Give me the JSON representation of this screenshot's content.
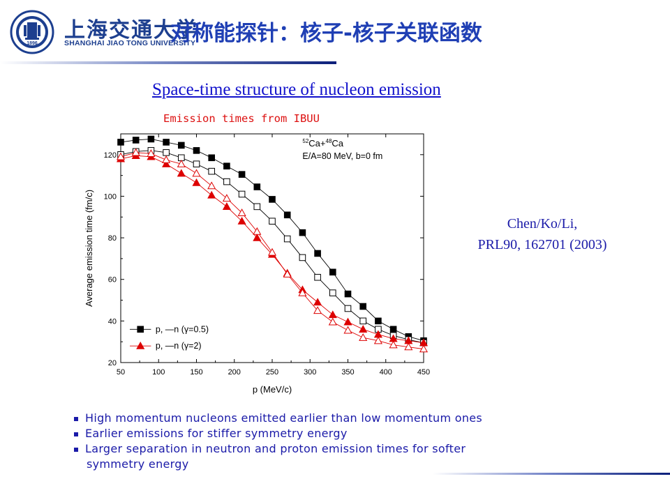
{
  "header": {
    "school_cn": "上海交通大学",
    "school_en": "SHANGHAI JIAO TONG UNIVERSITY",
    "logo_year": "1896",
    "slide_title": "对称能探针：核子-核子关联函数"
  },
  "subtitle": "Space-time structure of nucleon emission",
  "caption": "Emission times from IBUU",
  "citation": {
    "line1": "Chen/Ko/Li,",
    "line2": "PRL90, 162701 (2003)"
  },
  "bullets": [
    "High momentum nucleons emitted earlier than low momentum ones",
    "Earlier emissions for stiffer symmetry energy",
    "Larger separation in neutron and proton emission times for softer",
    "symmetry energy"
  ],
  "colors": {
    "title_blue": "#1f3fb4",
    "subtitle_blue": "#1111cc",
    "caption_red": "#dd1111",
    "text_navy": "#1a1aa8",
    "series_black": "#000000",
    "series_red": "#dd0000"
  },
  "chart_data": {
    "type": "line",
    "xlabel": "p (MeV/c)",
    "ylabel": "Average emission time (fm/c)",
    "xlim": [
      50,
      450
    ],
    "ylim": [
      20,
      130
    ],
    "xticks": [
      50,
      100,
      150,
      200,
      250,
      300,
      350,
      400,
      450
    ],
    "yticks": [
      20,
      40,
      60,
      80,
      100,
      120
    ],
    "annotation_line1": "Ca+Ca",
    "annotation_iso1": "52",
    "annotation_iso2": "48",
    "annotation_line2": "E/A=80 MeV, b=0 fm",
    "legend_row1": "p, —n (γ=0.5)",
    "legend_row2": "p, —n (γ=2)",
    "legend_position": "bottom-left",
    "x": [
      50,
      70,
      90,
      110,
      130,
      150,
      170,
      190,
      210,
      230,
      250,
      270,
      290,
      310,
      330,
      350,
      370,
      390,
      410,
      430,
      450
    ],
    "series": [
      {
        "label": "p γ=0.5",
        "marker": "square-filled",
        "color": "#000000",
        "values": [
          126,
          127,
          127.5,
          126,
          124.5,
          122,
          118.5,
          114.5,
          110.5,
          104.5,
          98.5,
          91,
          82.5,
          72.5,
          63.5,
          53,
          47,
          40,
          36,
          32.5,
          30.5
        ]
      },
      {
        "label": "n γ=0.5",
        "marker": "square-open",
        "color": "#000000",
        "values": [
          120,
          121.5,
          122,
          121,
          118.5,
          115.5,
          112,
          107,
          101,
          95,
          88,
          79.5,
          70.5,
          61,
          53.5,
          46,
          40,
          36,
          33,
          31,
          29.5
        ]
      },
      {
        "label": "p γ=2",
        "marker": "triangle-filled",
        "color": "#dd0000",
        "values": [
          118,
          119.5,
          119,
          115.5,
          111,
          106.5,
          100.5,
          95,
          88,
          80,
          72,
          63,
          55,
          49,
          43,
          39.5,
          36,
          33.5,
          31.5,
          30.5,
          29.5
        ]
      },
      {
        "label": "n γ=2",
        "marker": "triangle-open",
        "color": "#dd0000",
        "values": [
          119,
          121,
          120.5,
          117.5,
          115.5,
          111,
          105,
          99,
          92,
          83,
          73,
          62.5,
          53.5,
          45,
          39.5,
          35.5,
          32,
          30.5,
          28.5,
          27.5,
          26.5
        ]
      }
    ]
  }
}
